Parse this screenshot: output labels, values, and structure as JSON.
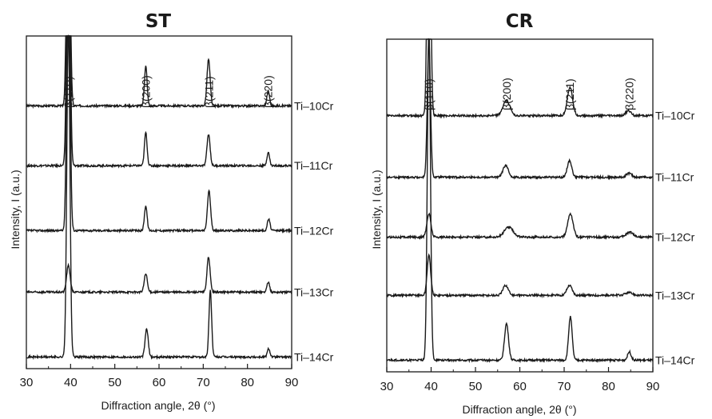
{
  "chart_data": [
    {
      "type": "line",
      "title": "ST",
      "xlabel": "Diffraction angle, 2θ (°)",
      "ylabel": "Intensity, I (a.u.)",
      "xlim": [
        30,
        90
      ],
      "xticks": [
        "30",
        "40",
        "50",
        "60",
        "70",
        "80",
        "90"
      ],
      "y_ticks_shown": false,
      "grid": false,
      "legend": "series labels at right end of each trace",
      "peak_labels": [
        {
          "label": "β(110)",
          "x": 39.5
        },
        {
          "label": "β(200)",
          "x": 57
        },
        {
          "label": "β(211)",
          "x": 71.3
        },
        {
          "label": "β(220)",
          "x": 84.7
        }
      ],
      "series": [
        {
          "name": "Ti–10Cr",
          "baseline": 0.79,
          "peaks": [
            {
              "x": 39.5,
              "h": 1.0,
              "w": 0.35
            },
            {
              "x": 57.0,
              "h": 0.12,
              "w": 0.3
            },
            {
              "x": 71.2,
              "h": 0.14,
              "w": 0.35
            },
            {
              "x": 84.7,
              "h": 0.045,
              "w": 0.3
            }
          ]
        },
        {
          "name": "Ti–11Cr",
          "baseline": 0.61,
          "peaks": [
            {
              "x": 39.5,
              "h": 1.0,
              "w": 0.35
            },
            {
              "x": 57.0,
              "h": 0.1,
              "w": 0.3
            },
            {
              "x": 71.2,
              "h": 0.095,
              "w": 0.35
            },
            {
              "x": 84.7,
              "h": 0.04,
              "w": 0.3
            }
          ]
        },
        {
          "name": "Ti–12Cr",
          "baseline": 0.415,
          "peaks": [
            {
              "x": 39.5,
              "h": 1.0,
              "w": 0.35
            },
            {
              "x": 57.0,
              "h": 0.075,
              "w": 0.3
            },
            {
              "x": 71.3,
              "h": 0.12,
              "w": 0.35
            },
            {
              "x": 84.8,
              "h": 0.035,
              "w": 0.3
            }
          ]
        },
        {
          "name": "Ti–13Cr",
          "baseline": 0.23,
          "peaks": [
            {
              "x": 39.5,
              "h": 0.08,
              "w": 0.4
            },
            {
              "x": 57.0,
              "h": 0.055,
              "w": 0.35
            },
            {
              "x": 71.2,
              "h": 0.105,
              "w": 0.35
            },
            {
              "x": 84.7,
              "h": 0.03,
              "w": 0.3
            }
          ]
        },
        {
          "name": "Ti–14Cr",
          "baseline": 0.035,
          "peaks": [
            {
              "x": 39.5,
              "h": 1.0,
              "w": 0.35
            },
            {
              "x": 57.2,
              "h": 0.085,
              "w": 0.35
            },
            {
              "x": 71.6,
              "h": 0.2,
              "w": 0.3
            },
            {
              "x": 84.8,
              "h": 0.025,
              "w": 0.3
            }
          ]
        }
      ]
    },
    {
      "type": "line",
      "title": "CR",
      "xlabel": "Diffraction angle, 2θ (°)",
      "ylabel": "Intensity, I (a.u.)",
      "xlim": [
        30,
        90
      ],
      "xticks": [
        "30",
        "40",
        "50",
        "60",
        "70",
        "80",
        "90"
      ],
      "y_ticks_shown": false,
      "grid": false,
      "legend": "series labels at right end of each trace",
      "peak_labels": [
        {
          "label": "β(110)",
          "x": 39.5
        },
        {
          "label": "β(200)",
          "x": 57
        },
        {
          "label": "β(211)",
          "x": 71.3
        },
        {
          "label": "β(220)",
          "x": 84.7
        }
      ],
      "series": [
        {
          "name": "Ti–10Cr",
          "baseline": 0.77,
          "peaks": [
            {
              "x": 39.5,
              "h": 1.0,
              "w": 0.35
            },
            {
              "x": 57.0,
              "h": 0.045,
              "w": 0.8
            },
            {
              "x": 71.3,
              "h": 0.085,
              "w": 0.6
            },
            {
              "x": 84.5,
              "h": 0.015,
              "w": 0.6
            }
          ]
        },
        {
          "name": "Ti–11Cr",
          "baseline": 0.585,
          "peaks": [
            {
              "x": 39.5,
              "h": 0.41,
              "w": 0.35
            },
            {
              "x": 56.8,
              "h": 0.035,
              "w": 0.6
            },
            {
              "x": 71.2,
              "h": 0.05,
              "w": 0.5
            },
            {
              "x": 84.6,
              "h": 0.012,
              "w": 0.6
            }
          ]
        },
        {
          "name": "Ti–12Cr",
          "baseline": 0.405,
          "peaks": [
            {
              "x": 39.5,
              "h": 0.07,
              "w": 0.45
            },
            {
              "x": 57.5,
              "h": 0.03,
              "w": 1.0
            },
            {
              "x": 71.4,
              "h": 0.07,
              "w": 0.6
            },
            {
              "x": 84.8,
              "h": 0.015,
              "w": 0.8
            }
          ]
        },
        {
          "name": "Ti–13Cr",
          "baseline": 0.23,
          "peaks": [
            {
              "x": 39.5,
              "h": 0.12,
              "w": 0.4
            },
            {
              "x": 56.8,
              "h": 0.03,
              "w": 0.6
            },
            {
              "x": 71.2,
              "h": 0.03,
              "w": 0.6
            },
            {
              "x": 84.6,
              "h": 0.008,
              "w": 0.8
            }
          ]
        },
        {
          "name": "Ti–14Cr",
          "baseline": 0.035,
          "peaks": [
            {
              "x": 39.5,
              "h": 1.0,
              "w": 0.35
            },
            {
              "x": 57.0,
              "h": 0.11,
              "w": 0.45
            },
            {
              "x": 71.4,
              "h": 0.13,
              "w": 0.4
            },
            {
              "x": 84.7,
              "h": 0.025,
              "w": 0.4
            }
          ]
        }
      ]
    }
  ]
}
